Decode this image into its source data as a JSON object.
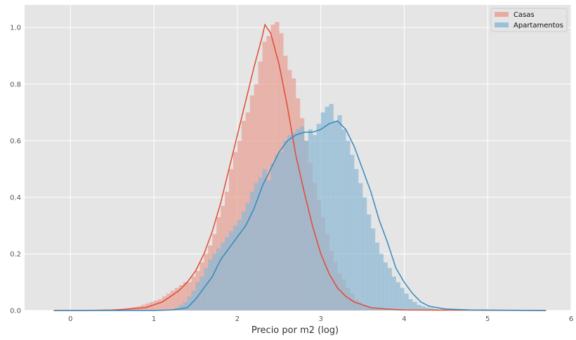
{
  "chart_data": {
    "type": "area",
    "xlabel": "Precio por m2 (log)",
    "ylabel": "",
    "xlim": [
      -0.55,
      6.0
    ],
    "ylim": [
      0,
      1.08
    ],
    "x_ticks": [
      "0",
      "1",
      "2",
      "3",
      "4",
      "5",
      "6"
    ],
    "y_ticks": [
      "0.0",
      "0.2",
      "0.4",
      "0.6",
      "0.8",
      "1.0"
    ],
    "grid": true,
    "legend_position": "top-right",
    "bin_width": 0.05,
    "series": [
      {
        "name": "Casas",
        "hist_color": "#E8A195",
        "line_color": "#E24A33",
        "hist_range": [
          0.6,
          3.8
        ],
        "hist_values": [
          0.005,
          0.008,
          0.01,
          0.012,
          0.015,
          0.02,
          0.025,
          0.03,
          0.035,
          0.04,
          0.05,
          0.06,
          0.07,
          0.08,
          0.09,
          0.1,
          0.1,
          0.12,
          0.14,
          0.17,
          0.2,
          0.23,
          0.27,
          0.33,
          0.37,
          0.42,
          0.5,
          0.56,
          0.6,
          0.67,
          0.7,
          0.76,
          0.8,
          0.88,
          0.95,
          0.97,
          1.01,
          1.02,
          0.98,
          0.9,
          0.85,
          0.82,
          0.75,
          0.68,
          0.6,
          0.52,
          0.45,
          0.39,
          0.33,
          0.27,
          0.21,
          0.17,
          0.13,
          0.11,
          0.08,
          0.06,
          0.04,
          0.03,
          0.02,
          0.015,
          0.01,
          0.008,
          0.005,
          0.003
        ],
        "kde": [
          [
            -0.2,
            0.0
          ],
          [
            0.2,
            0.0
          ],
          [
            0.5,
            0.002
          ],
          [
            0.7,
            0.005
          ],
          [
            0.8,
            0.008
          ],
          [
            0.9,
            0.01
          ],
          [
            1.0,
            0.02
          ],
          [
            1.1,
            0.03
          ],
          [
            1.2,
            0.05
          ],
          [
            1.3,
            0.07
          ],
          [
            1.4,
            0.1
          ],
          [
            1.5,
            0.14
          ],
          [
            1.6,
            0.2
          ],
          [
            1.7,
            0.28
          ],
          [
            1.8,
            0.38
          ],
          [
            1.9,
            0.5
          ],
          [
            2.0,
            0.62
          ],
          [
            2.1,
            0.74
          ],
          [
            2.2,
            0.86
          ],
          [
            2.3,
            0.97
          ],
          [
            2.33,
            1.01
          ],
          [
            2.4,
            0.98
          ],
          [
            2.5,
            0.87
          ],
          [
            2.6,
            0.72
          ],
          [
            2.7,
            0.55
          ],
          [
            2.8,
            0.42
          ],
          [
            2.9,
            0.3
          ],
          [
            3.0,
            0.2
          ],
          [
            3.1,
            0.13
          ],
          [
            3.2,
            0.08
          ],
          [
            3.3,
            0.05
          ],
          [
            3.4,
            0.03
          ],
          [
            3.5,
            0.02
          ],
          [
            3.6,
            0.01
          ],
          [
            3.8,
            0.005
          ],
          [
            4.0,
            0.002
          ],
          [
            5.7,
            0.0
          ]
        ]
      },
      {
        "name": "Apartamentos",
        "hist_color": "#8DB8D4",
        "line_color": "#348ABD",
        "hist_range": [
          1.2,
          4.5
        ],
        "hist_values": [
          0.005,
          0.01,
          0.02,
          0.03,
          0.05,
          0.07,
          0.1,
          0.12,
          0.15,
          0.18,
          0.2,
          0.22,
          0.24,
          0.26,
          0.28,
          0.3,
          0.32,
          0.35,
          0.38,
          0.42,
          0.45,
          0.47,
          0.5,
          0.46,
          0.52,
          0.55,
          0.56,
          0.6,
          0.62,
          0.63,
          0.64,
          0.65,
          0.6,
          0.64,
          0.62,
          0.66,
          0.7,
          0.72,
          0.73,
          0.67,
          0.69,
          0.64,
          0.6,
          0.55,
          0.5,
          0.45,
          0.4,
          0.34,
          0.29,
          0.24,
          0.2,
          0.17,
          0.15,
          0.12,
          0.1,
          0.08,
          0.06,
          0.04,
          0.03,
          0.02,
          0.015,
          0.01,
          0.008,
          0.005,
          0.003,
          0.002
        ],
        "kde": [
          [
            -0.2,
            0.0
          ],
          [
            1.0,
            0.0
          ],
          [
            1.2,
            0.002
          ],
          [
            1.3,
            0.005
          ],
          [
            1.4,
            0.01
          ],
          [
            1.5,
            0.04
          ],
          [
            1.6,
            0.08
          ],
          [
            1.7,
            0.12
          ],
          [
            1.8,
            0.18
          ],
          [
            1.9,
            0.22
          ],
          [
            2.0,
            0.26
          ],
          [
            2.1,
            0.3
          ],
          [
            2.2,
            0.36
          ],
          [
            2.3,
            0.44
          ],
          [
            2.4,
            0.5
          ],
          [
            2.5,
            0.56
          ],
          [
            2.6,
            0.6
          ],
          [
            2.7,
            0.62
          ],
          [
            2.8,
            0.63
          ],
          [
            2.9,
            0.63
          ],
          [
            3.0,
            0.64
          ],
          [
            3.1,
            0.66
          ],
          [
            3.2,
            0.67
          ],
          [
            3.3,
            0.64
          ],
          [
            3.4,
            0.58
          ],
          [
            3.5,
            0.5
          ],
          [
            3.6,
            0.42
          ],
          [
            3.7,
            0.32
          ],
          [
            3.8,
            0.24
          ],
          [
            3.9,
            0.15
          ],
          [
            4.0,
            0.1
          ],
          [
            4.1,
            0.06
          ],
          [
            4.2,
            0.03
          ],
          [
            4.3,
            0.015
          ],
          [
            4.5,
            0.005
          ],
          [
            4.8,
            0.002
          ],
          [
            5.7,
            0.0
          ]
        ]
      }
    ]
  }
}
